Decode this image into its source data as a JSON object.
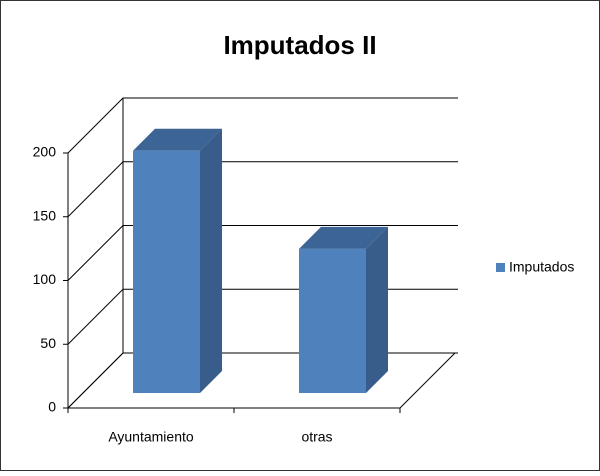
{
  "chart_data": {
    "type": "bar3d",
    "title": "Imputados II",
    "categories": [
      "Ayuntamiento",
      "otras"
    ],
    "series": [
      {
        "name": "Imputados",
        "color": "#4f81bd",
        "values": [
          190,
          113
        ]
      }
    ],
    "ylim": [
      0,
      200
    ],
    "yticks": [
      0,
      50,
      100,
      150,
      200
    ],
    "grid": true,
    "legend": "right"
  }
}
